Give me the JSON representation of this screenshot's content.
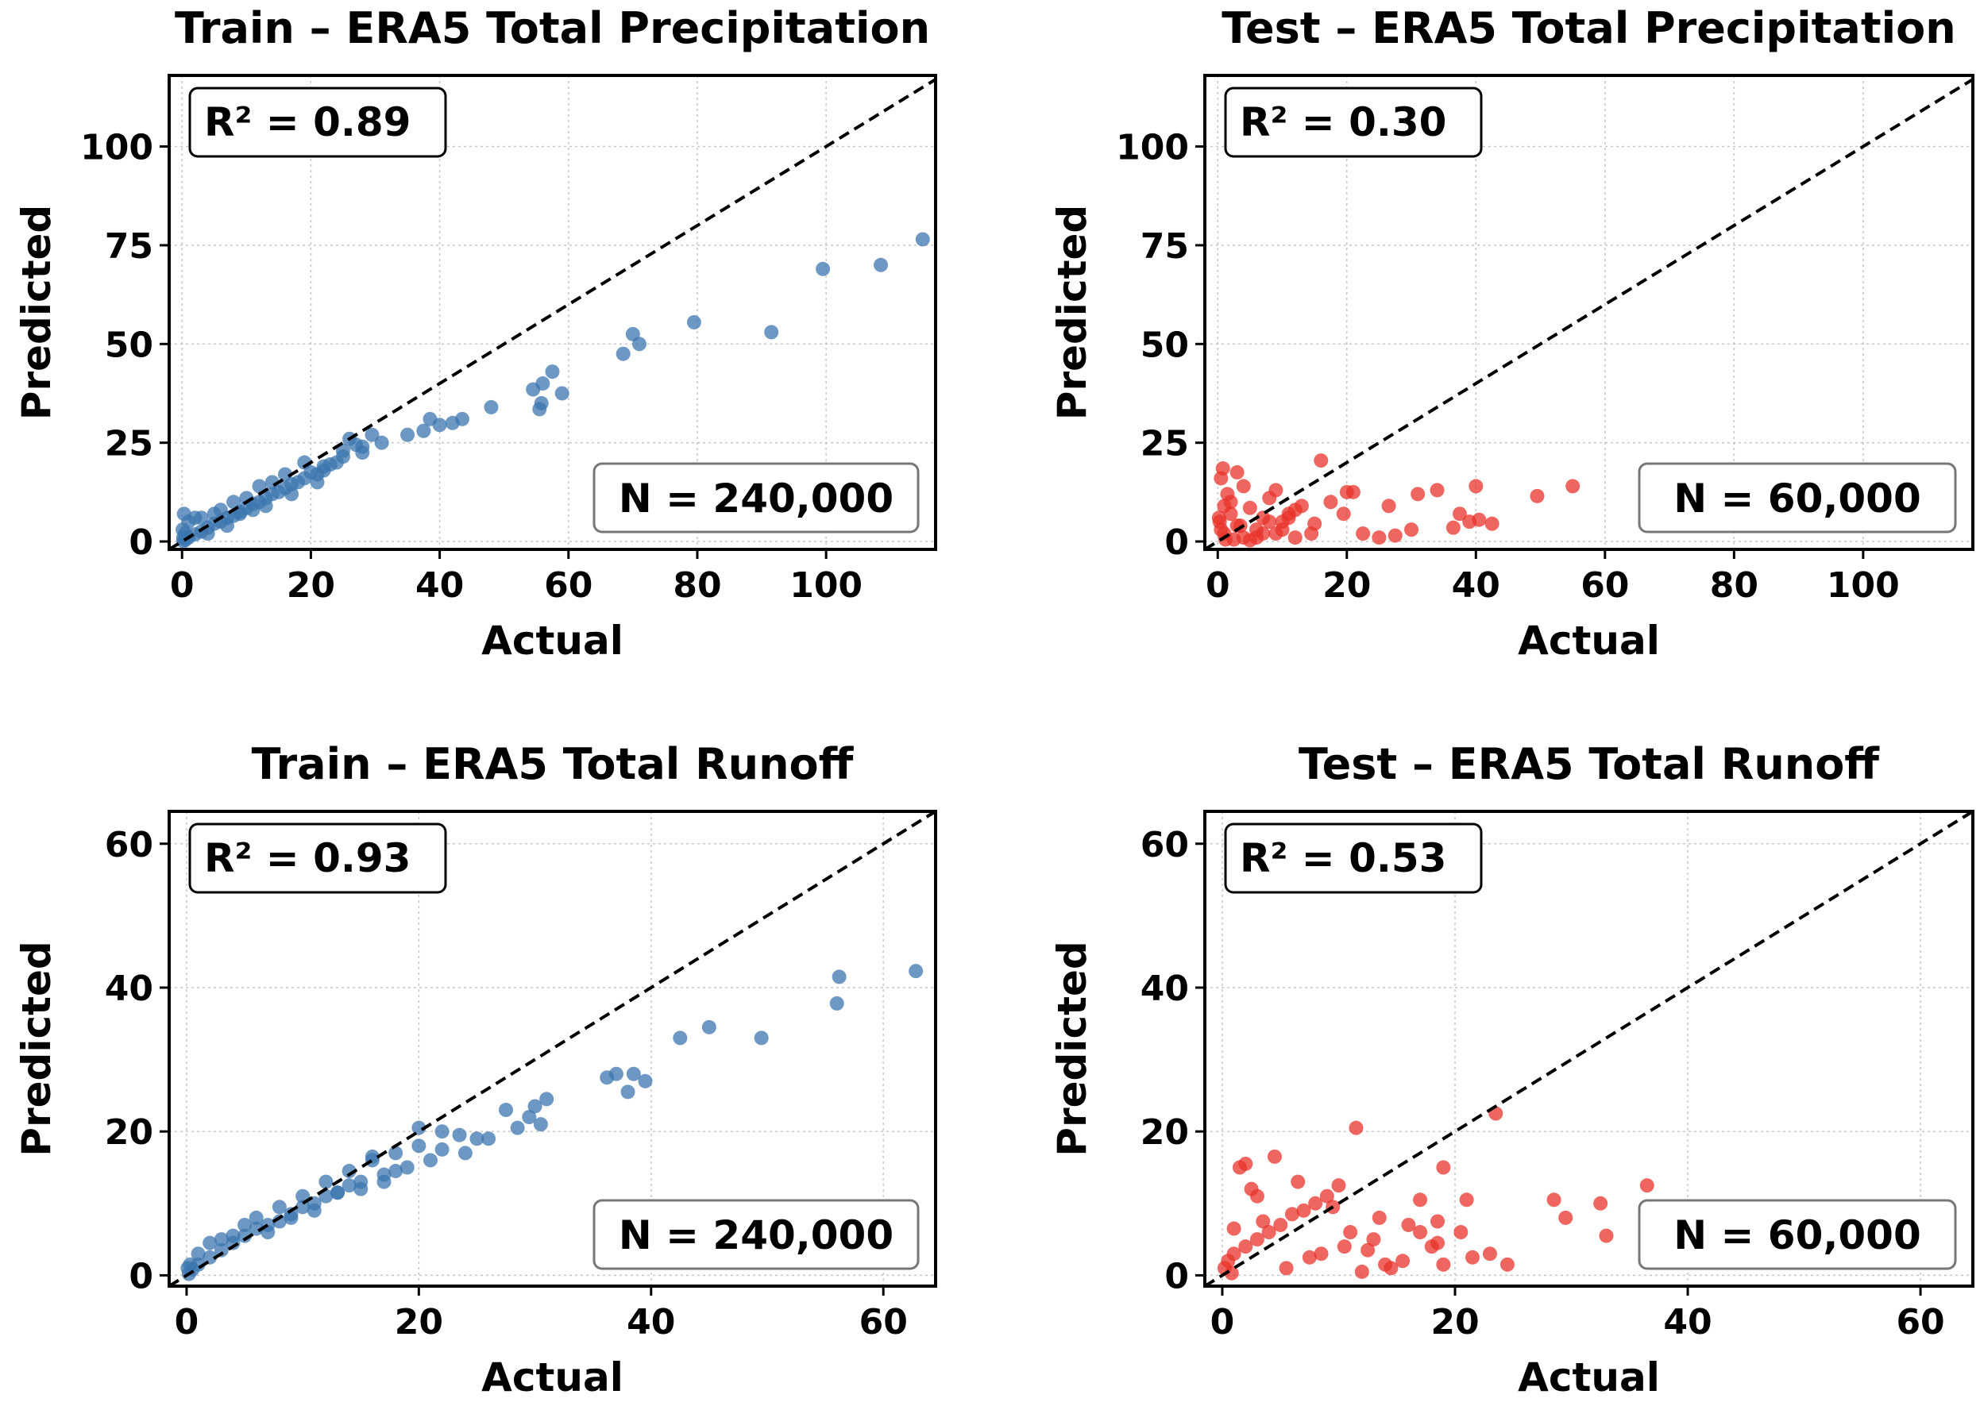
{
  "figure": {
    "colors": {
      "train": "#3b75af",
      "test": "#e8332a",
      "diagonal": "#000000",
      "grid": "#b0b0b0"
    }
  },
  "chart_data": [
    {
      "type": "scatter",
      "title": "Train – ERA5 Total Precipitation",
      "xlabel": "Actual",
      "ylabel": "Predicted",
      "xlim": [
        -2,
        117
      ],
      "ylim": [
        -2,
        118
      ],
      "xticks": [
        0,
        20,
        40,
        60,
        80,
        100
      ],
      "yticks": [
        0,
        25,
        50,
        75,
        100
      ],
      "r2_label": "R² = 0.89",
      "r2": 0.89,
      "n_label": "N = 240,000",
      "n": 240000,
      "color": "#3b75af",
      "grid": true,
      "diagonal": "y = x (dashed)",
      "x": [
        115,
        108.5,
        99.5,
        91.5,
        79.5,
        71,
        70,
        68.5,
        59,
        57.5,
        56,
        55.8,
        55.5,
        54.5,
        48,
        43.5,
        42,
        40,
        38.5,
        37.5,
        35,
        31,
        29.5,
        28,
        27,
        26,
        25,
        24,
        23,
        22,
        21,
        20,
        19,
        18,
        17,
        16,
        15,
        14,
        13,
        12,
        11,
        10,
        9,
        8,
        7,
        6,
        5,
        4,
        3,
        2,
        1,
        0.5,
        0.2,
        5,
        8,
        12,
        16,
        19,
        22,
        25,
        28,
        10,
        14,
        6,
        3,
        1,
        0.3,
        0.1,
        2,
        4,
        7,
        9,
        11,
        13,
        17,
        21,
        0.2,
        0.5
      ],
      "y": [
        76.5,
        70,
        69,
        53,
        55.5,
        50,
        52.5,
        47.5,
        37.5,
        43,
        40,
        35,
        33.5,
        38.5,
        34,
        31,
        30,
        29.5,
        31,
        28,
        27,
        25,
        27,
        22.5,
        24.5,
        26,
        21.5,
        20,
        19.5,
        18,
        17,
        17.5,
        16,
        15,
        14.5,
        13.5,
        12.5,
        12,
        11,
        10,
        9.5,
        8.5,
        7.5,
        6.5,
        6,
        5,
        4.5,
        3.5,
        2.5,
        1.8,
        1,
        0.4,
        0.1,
        7,
        10,
        14,
        17,
        20,
        19,
        23,
        24,
        11,
        15,
        8,
        6,
        5,
        7,
        3,
        6,
        2,
        4,
        7,
        8,
        9,
        12,
        15,
        1,
        2
      ]
    },
    {
      "type": "scatter",
      "title": "Test – ERA5 Total Precipitation",
      "xlabel": "Actual",
      "ylabel": "Predicted",
      "xlim": [
        -2,
        117
      ],
      "ylim": [
        -2,
        118
      ],
      "xticks": [
        0,
        20,
        40,
        60,
        80,
        100
      ],
      "yticks": [
        0,
        25,
        50,
        75,
        100
      ],
      "r2_label": "R² = 0.30",
      "r2": 0.3,
      "n_label": "N = 60,000",
      "n": 60000,
      "color": "#e8332a",
      "grid": true,
      "diagonal": "y = x (dashed)",
      "x": [
        16,
        55,
        49.5,
        40,
        37.5,
        34,
        31,
        27.5,
        26.5,
        21,
        19.5,
        42.5,
        40.5,
        39,
        36.5,
        30,
        25,
        22.5,
        20,
        17.5,
        15,
        14.5,
        13,
        12,
        11,
        10,
        9,
        8,
        7,
        6,
        5,
        4,
        3,
        2,
        1.5,
        1,
        0.5,
        0.2,
        7,
        3,
        1,
        2,
        0.5,
        10,
        6,
        4,
        8,
        12,
        2.5,
        1.2,
        0.3,
        5,
        9,
        11,
        3.5,
        0.8
      ],
      "y": [
        20.5,
        14,
        11.5,
        14,
        7,
        13,
        12,
        1.5,
        9,
        12.5,
        7,
        4.5,
        5.5,
        5,
        3.5,
        3,
        1,
        2,
        12.5,
        10,
        4.5,
        2,
        9,
        8,
        7,
        5,
        13,
        11,
        6,
        3,
        8.5,
        14,
        17.5,
        10,
        12,
        9,
        16,
        6,
        2,
        4,
        2,
        7,
        3,
        3,
        1,
        1,
        5,
        1,
        0.5,
        0.5,
        5,
        0.3,
        2,
        6,
        4,
        18.5
      ]
    },
    {
      "type": "scatter",
      "title": "Train – ERA5 Total Runoff",
      "xlabel": "Actual",
      "ylabel": "Predicted",
      "xlim": [
        -1.5,
        64.5
      ],
      "ylim": [
        -1.5,
        64.5
      ],
      "xticks": [
        0,
        20,
        40,
        60
      ],
      "yticks": [
        0,
        20,
        40,
        60
      ],
      "r2_label": "R² = 0.93",
      "r2": 0.93,
      "n_label": "N = 240,000",
      "n": 240000,
      "color": "#3b75af",
      "grid": true,
      "diagonal": "y = x (dashed)",
      "x": [
        62.8,
        56.2,
        56,
        49.5,
        45,
        42.5,
        39.5,
        38.5,
        38,
        37,
        36.2,
        31,
        30.5,
        30,
        29.5,
        28.5,
        27.5,
        26,
        25,
        23.5,
        22,
        21,
        20,
        19,
        18,
        17,
        16,
        15,
        14,
        13,
        12,
        11,
        10,
        9,
        8,
        7,
        6,
        5,
        4,
        3,
        2,
        1,
        0.5,
        0.2,
        3,
        6,
        10,
        14,
        18,
        22,
        1,
        2,
        5,
        8,
        12,
        16,
        20,
        4,
        7,
        9,
        11,
        13,
        15,
        0.1,
        0.3,
        24,
        17
      ],
      "y": [
        42.3,
        41.5,
        37.8,
        33,
        34.5,
        33,
        27,
        28,
        25.5,
        28,
        27.5,
        24.5,
        21,
        23.5,
        22,
        20.5,
        23,
        19,
        19,
        19.5,
        17.5,
        16,
        20.5,
        15,
        14.5,
        14,
        16.5,
        13,
        12.5,
        11.5,
        11,
        10,
        9.5,
        8.5,
        7.5,
        7,
        6.5,
        5.5,
        4.5,
        3.5,
        2.5,
        1.5,
        0.8,
        0.2,
        5,
        8,
        11,
        14.5,
        17,
        20,
        3,
        4.5,
        7,
        9.5,
        13,
        16,
        18,
        5.5,
        6,
        8,
        9,
        11.5,
        12,
        1,
        1.5,
        17,
        13
      ]
    },
    {
      "type": "scatter",
      "title": "Test – ERA5 Total Runoff",
      "xlabel": "Actual",
      "ylabel": "Predicted",
      "xlim": [
        -1.5,
        64.5
      ],
      "ylim": [
        -1.5,
        64.5
      ],
      "xticks": [
        0,
        20,
        40,
        60
      ],
      "yticks": [
        0,
        20,
        40,
        60
      ],
      "r2_label": "R² = 0.53",
      "r2": 0.53,
      "n_label": "N = 60,000",
      "n": 60000,
      "color": "#e8332a",
      "grid": true,
      "diagonal": "y = x (dashed)",
      "x": [
        23.5,
        36.5,
        32.5,
        28.5,
        29.5,
        24.5,
        23,
        33,
        21,
        19,
        18.5,
        17,
        14.5,
        13.5,
        12.5,
        19,
        18,
        11.5,
        10,
        9,
        8,
        7,
        6,
        5,
        4,
        3,
        2,
        1,
        0.5,
        0.2,
        1.5,
        2.5,
        3.5,
        4.5,
        6.5,
        8.5,
        11,
        13,
        15.5,
        17,
        16,
        14,
        12,
        10.5,
        9.5,
        7.5,
        5.5,
        2,
        3,
        1,
        0.8,
        20.5,
        21.5,
        18.5
      ],
      "y": [
        22.5,
        12.5,
        10,
        10.5,
        8,
        1.5,
        3,
        5.5,
        10.5,
        15,
        7.5,
        10.5,
        1,
        8,
        3.5,
        1.5,
        4,
        20.5,
        12.5,
        11,
        10,
        9,
        8.5,
        7,
        6,
        5,
        4,
        3,
        2,
        1,
        15,
        12,
        7.5,
        16.5,
        13,
        3,
        6,
        5,
        2,
        6,
        7,
        1.5,
        0.5,
        4,
        9.5,
        2.5,
        1,
        15.5,
        11,
        6.5,
        0.3,
        6,
        2.5,
        4.5
      ]
    }
  ]
}
